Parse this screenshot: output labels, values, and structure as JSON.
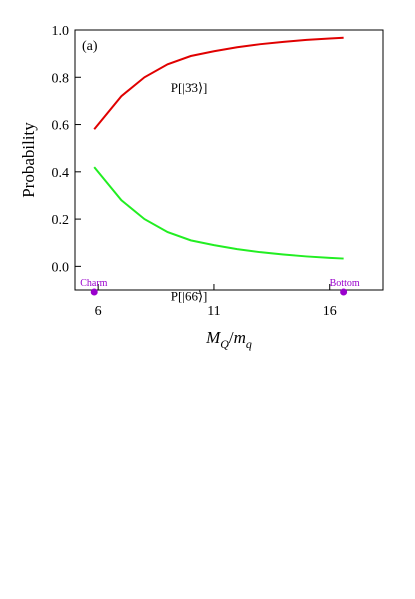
{
  "chart_data": {
    "type": "line",
    "annotation": "(a)",
    "ylabel": "Probability",
    "xlabel_parts": [
      "M",
      "Q",
      "/",
      "m",
      "q"
    ],
    "x": [
      5.83,
      7,
      8,
      9,
      10,
      11,
      12,
      13,
      14,
      15,
      16,
      16.6
    ],
    "series": [
      {
        "name": "P[|3̄3⟩]",
        "color": "#e00000",
        "values": [
          0.58,
          0.72,
          0.8,
          0.855,
          0.89,
          0.91,
          0.927,
          0.94,
          0.95,
          0.958,
          0.964,
          0.967
        ]
      },
      {
        "name": "P[|66̄⟩]",
        "color": "#22ee22",
        "values": [
          0.42,
          0.28,
          0.2,
          0.145,
          0.11,
          0.09,
          0.073,
          0.06,
          0.05,
          0.042,
          0.036,
          0.033
        ]
      }
    ],
    "markers": [
      {
        "label": "Charm",
        "x": 5.83
      },
      {
        "label": "Bottom",
        "x": 16.6
      }
    ],
    "marker_color": "#9900cc",
    "xlim": [
      5,
      18.3
    ],
    "ylim": [
      -0.1,
      1.0
    ],
    "xticks": [
      6,
      11,
      16
    ],
    "yticks": [
      {
        "value": 0,
        "label": "0.0"
      },
      0.2,
      0.4,
      0.6,
      0.8,
      {
        "value": 1,
        "label": "1.0"
      }
    ]
  }
}
